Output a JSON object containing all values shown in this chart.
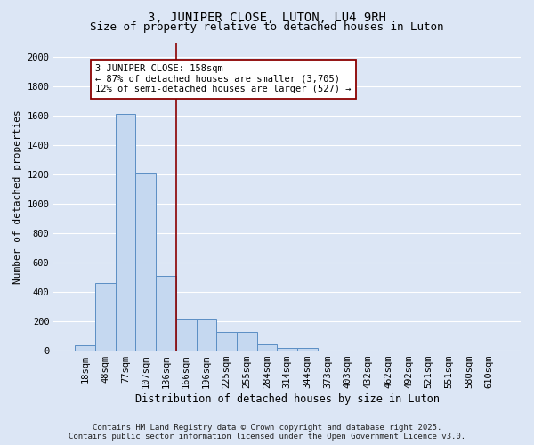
{
  "title": "3, JUNIPER CLOSE, LUTON, LU4 9RH",
  "subtitle": "Size of property relative to detached houses in Luton",
  "xlabel": "Distribution of detached houses by size in Luton",
  "ylabel": "Number of detached properties",
  "categories": [
    "18sqm",
    "48sqm",
    "77sqm",
    "107sqm",
    "136sqm",
    "166sqm",
    "196sqm",
    "225sqm",
    "255sqm",
    "284sqm",
    "314sqm",
    "344sqm",
    "373sqm",
    "403sqm",
    "432sqm",
    "462sqm",
    "492sqm",
    "521sqm",
    "551sqm",
    "580sqm",
    "610sqm"
  ],
  "values": [
    35,
    460,
    1610,
    1210,
    510,
    220,
    220,
    130,
    130,
    40,
    20,
    20,
    0,
    0,
    0,
    0,
    0,
    0,
    0,
    0,
    0
  ],
  "bar_color": "#c5d8f0",
  "bar_edgecolor": "#5b8ec4",
  "background_color": "#dce6f5",
  "grid_color": "#ffffff",
  "vline_x": 4.5,
  "vline_color": "#8b0000",
  "annotation_line1": "3 JUNIPER CLOSE: 158sqm",
  "annotation_line2": "← 87% of detached houses are smaller (3,705)",
  "annotation_line3": "12% of semi-detached houses are larger (527) →",
  "annotation_box_facecolor": "#ffffff",
  "annotation_box_edgecolor": "#8b0000",
  "ylim": [
    0,
    2100
  ],
  "yticks": [
    0,
    200,
    400,
    600,
    800,
    1000,
    1200,
    1400,
    1600,
    1800,
    2000
  ],
  "footer_line1": "Contains HM Land Registry data © Crown copyright and database right 2025.",
  "footer_line2": "Contains public sector information licensed under the Open Government Licence v3.0.",
  "title_fontsize": 10,
  "subtitle_fontsize": 9,
  "axis_tick_fontsize": 7.5,
  "ylabel_fontsize": 8,
  "xlabel_fontsize": 8.5,
  "annotation_fontsize": 7.5,
  "footer_fontsize": 6.5
}
